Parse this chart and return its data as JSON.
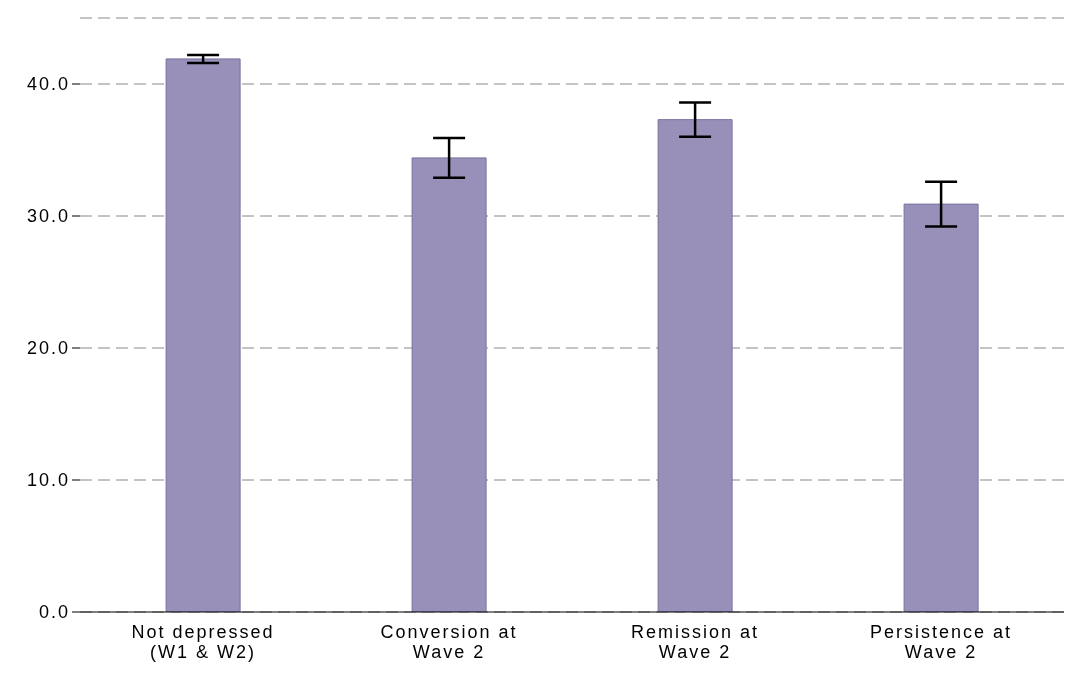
{
  "chart_data": {
    "type": "bar",
    "categories": [
      "Not depressed (W1 & W2)",
      "Conversion at Wave 2",
      "Remission at Wave 2",
      "Persistence at Wave 2"
    ],
    "values": [
      41.9,
      34.4,
      37.3,
      30.9
    ],
    "errors": [
      0.3,
      1.5,
      1.3,
      1.7
    ],
    "color": "#9990b9",
    "ylim": [
      0,
      45
    ],
    "yticks": [
      {
        "value": 0,
        "label": "0.0"
      },
      {
        "value": 10,
        "label": "10.0"
      },
      {
        "value": 20,
        "label": "20.0"
      },
      {
        "value": 30,
        "label": "30.0"
      },
      {
        "value": 40,
        "label": "40.0"
      }
    ],
    "grid": "y"
  }
}
